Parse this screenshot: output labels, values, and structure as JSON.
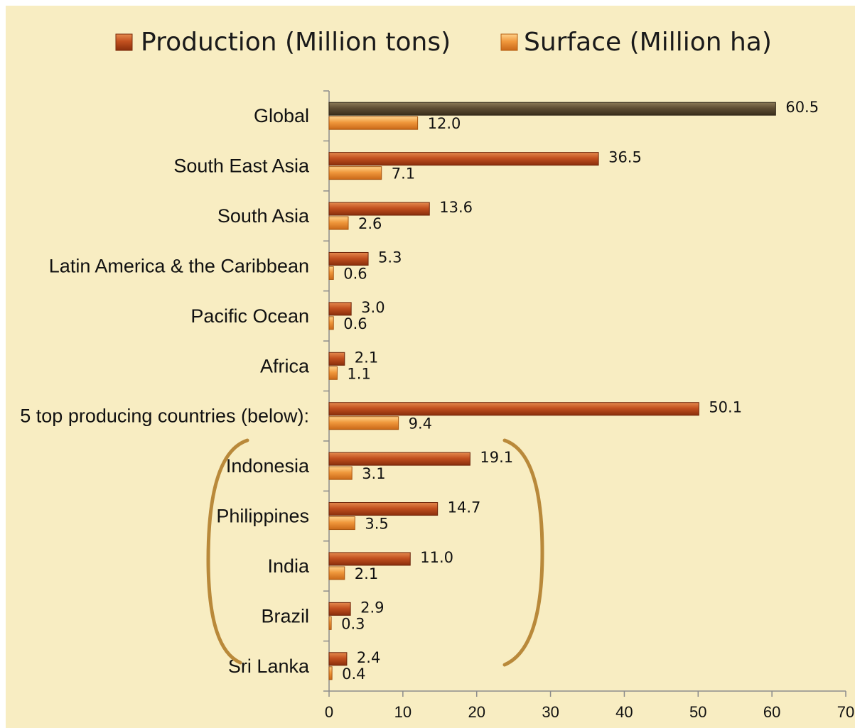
{
  "chart_data": {
    "type": "bar",
    "orientation": "horizontal",
    "categories": [
      "Global",
      "South East Asia",
      "South Asia",
      "Latin America & the Caribbean",
      "Pacific Ocean",
      "Africa",
      "5 top producing countries (below):",
      "Indonesia",
      "Philippines",
      "India",
      "Brazil",
      "Sri Lanka"
    ],
    "series": [
      {
        "name": "Production (Million tons)",
        "values": [
          60.5,
          36.5,
          13.6,
          5.3,
          3.0,
          2.1,
          50.1,
          19.1,
          14.7,
          11.0,
          2.9,
          2.4
        ],
        "labels": [
          "60.5",
          "36.5",
          "13.6",
          "5.3",
          "3.0",
          "2.1",
          "50.1",
          "19.1",
          "14.7",
          "11.0",
          "2.9",
          "2.4"
        ]
      },
      {
        "name": "Surface (Million ha)",
        "values": [
          12.0,
          7.1,
          2.6,
          0.6,
          0.6,
          1.1,
          9.4,
          3.1,
          3.5,
          2.1,
          0.3,
          0.4
        ],
        "labels": [
          "12.0",
          "7.1",
          "2.6",
          "0.6",
          "0.6",
          "1.1",
          "9.4",
          "3.1",
          "3.5",
          "2.1",
          "0.3",
          "0.4"
        ]
      }
    ],
    "xlim": [
      0,
      70
    ],
    "xticks": [
      "0",
      "10",
      "20",
      "30",
      "40",
      "50",
      "60",
      "70"
    ],
    "legend_position": "top",
    "grid": false,
    "title": "",
    "xlabel": "",
    "ylabel": ""
  },
  "colors": {
    "background": "#f8edc2",
    "production": "#b8461a",
    "production_highlight": "#e07a3e",
    "surface": "#e9862c",
    "surface_highlight": "#ffc766",
    "global_production": "#5a4a30",
    "bracket": "#b9893a",
    "axis": "#8c8c8c"
  }
}
